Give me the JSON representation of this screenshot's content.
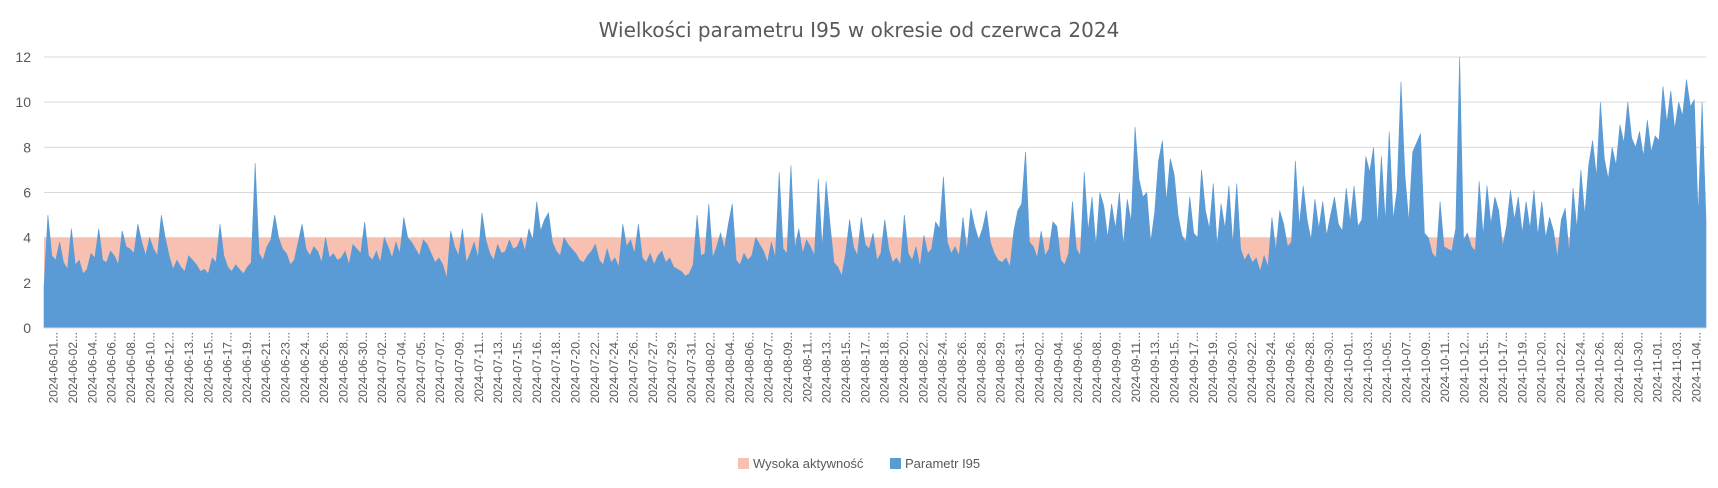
{
  "chart_data": {
    "type": "area",
    "title": "Wielkości parametru I95 w okresie od czerwca 2024",
    "xlabel": "",
    "ylabel": "",
    "ylim": [
      0,
      12
    ],
    "yticks": [
      0,
      2,
      4,
      6,
      8,
      10,
      12
    ],
    "grid": true,
    "legend_position": "bottom",
    "x_tick_labels": [
      "2024-06-01...",
      "2024-06-02...",
      "2024-06-04...",
      "2024-06-06...",
      "2024-06-08...",
      "2024-06-10...",
      "2024-06-12...",
      "2024-06-13...",
      "2024-06-15...",
      "2024-06-17...",
      "2024-06-19...",
      "2024-06-21...",
      "2024-06-23...",
      "2024-06-24...",
      "2024-06-26...",
      "2024-06-28...",
      "2024-06-30...",
      "2024-07-02...",
      "2024-07-04...",
      "2024-07-05...",
      "2024-07-07...",
      "2024-07-09...",
      "2024-07-11...",
      "2024-07-13...",
      "2024-07-15...",
      "2024-07-16...",
      "2024-07-18...",
      "2024-07-20...",
      "2024-07-22...",
      "2024-07-24...",
      "2024-07-26...",
      "2024-07-27...",
      "2024-07-29...",
      "2024-07-31...",
      "2024-08-02...",
      "2024-08-04...",
      "2024-08-06...",
      "2024-08-07...",
      "2024-08-09...",
      "2024-08-11...",
      "2024-08-13...",
      "2024-08-15...",
      "2024-08-17...",
      "2024-08-18...",
      "2024-08-20...",
      "2024-08-22...",
      "2024-08-24...",
      "2024-08-26...",
      "2024-08-28...",
      "2024-08-29...",
      "2024-08-31...",
      "2024-09-02...",
      "2024-09-04...",
      "2024-09-06...",
      "2024-09-08...",
      "2024-09-09...",
      "2024-09-11...",
      "2024-09-13...",
      "2024-09-15...",
      "2024-09-17...",
      "2024-09-19...",
      "2024-09-20...",
      "2024-09-22...",
      "2024-09-24...",
      "2024-09-26...",
      "2024-09-28...",
      "2024-09-30...",
      "2024-10-01...",
      "2024-10-03...",
      "2024-10-05...",
      "2024-10-07...",
      "2024-10-09...",
      "2024-10-11...",
      "2024-10-12...",
      "2024-10-15...",
      "2024-10-17...",
      "2024-10-19...",
      "2024-10-20...",
      "2024-10-22...",
      "2024-10-24...",
      "2024-10-26...",
      "2024-10-28...",
      "2024-10-30...",
      "2024-11-01...",
      "2024-11-03...",
      "2024-11-04..."
    ],
    "series": [
      {
        "name": "Wysoka aktywność",
        "kind": "band",
        "range": [
          0,
          4
        ],
        "color": "#f8c0b0"
      },
      {
        "name": "Parametr I95",
        "kind": "area",
        "color": "#5b9bd5",
        "values": [
          1.8,
          5.0,
          3.2,
          3.0,
          3.8,
          2.9,
          2.6,
          4.4,
          2.8,
          3.0,
          2.4,
          2.6,
          3.3,
          3.1,
          4.4,
          3.0,
          2.9,
          3.4,
          3.2,
          2.8,
          4.3,
          3.6,
          3.5,
          3.3,
          4.6,
          3.8,
          3.2,
          4.0,
          3.5,
          3.2,
          5.0,
          4.0,
          3.2,
          2.6,
          3.0,
          2.7,
          2.5,
          3.2,
          3.0,
          2.8,
          2.5,
          2.6,
          2.4,
          3.1,
          2.9,
          4.6,
          3.2,
          2.7,
          2.5,
          2.8,
          2.6,
          2.4,
          2.7,
          2.9,
          7.3,
          3.3,
          3.0,
          3.6,
          3.9,
          5.0,
          4.0,
          3.5,
          3.3,
          2.8,
          3.0,
          3.8,
          4.6,
          3.5,
          3.2,
          3.6,
          3.4,
          2.9,
          4.0,
          3.1,
          3.3,
          3.0,
          3.1,
          3.4,
          2.8,
          3.7,
          3.5,
          3.3,
          4.7,
          3.2,
          3.0,
          3.4,
          2.9,
          4.0,
          3.6,
          3.1,
          3.8,
          3.3,
          4.9,
          4.0,
          3.8,
          3.5,
          3.2,
          3.9,
          3.7,
          3.3,
          2.9,
          3.1,
          2.8,
          2.2,
          4.3,
          3.6,
          3.2,
          4.4,
          2.9,
          3.3,
          3.8,
          3.1,
          5.1,
          3.9,
          3.3,
          3.0,
          3.7,
          3.3,
          3.4,
          3.9,
          3.5,
          3.6,
          4.0,
          3.4,
          4.4,
          3.9,
          5.6,
          4.3,
          4.8,
          5.1,
          3.8,
          3.4,
          3.2,
          4.0,
          3.7,
          3.5,
          3.3,
          3.0,
          2.9,
          3.2,
          3.4,
          3.7,
          3.0,
          2.8,
          3.5,
          2.9,
          3.1,
          2.7,
          4.6,
          3.6,
          3.9,
          3.3,
          4.6,
          3.1,
          2.9,
          3.3,
          2.8,
          3.2,
          3.4,
          2.9,
          3.1,
          2.7,
          2.6,
          2.5,
          2.3,
          2.4,
          2.8,
          5.0,
          3.2,
          3.3,
          5.5,
          3.1,
          3.6,
          4.2,
          3.5,
          4.6,
          5.5,
          3.0,
          2.8,
          3.3,
          3.0,
          3.2,
          4.0,
          3.7,
          3.4,
          2.9,
          3.8,
          3.1,
          6.9,
          3.5,
          3.3,
          7.2,
          3.5,
          4.4,
          3.3,
          3.9,
          3.6,
          3.2,
          6.6,
          3.5,
          6.5,
          4.6,
          2.9,
          2.7,
          2.3,
          3.3,
          4.8,
          3.6,
          3.2,
          4.9,
          3.7,
          3.5,
          4.2,
          3.0,
          3.3,
          4.8,
          3.5,
          2.9,
          3.1,
          2.8,
          5.0,
          3.3,
          3.0,
          3.6,
          2.7,
          4.1,
          3.3,
          3.5,
          4.7,
          4.4,
          6.7,
          3.8,
          3.3,
          3.6,
          3.2,
          4.9,
          3.4,
          5.3,
          4.5,
          3.9,
          4.4,
          5.2,
          3.8,
          3.3,
          3.0,
          2.9,
          3.1,
          2.7,
          4.3,
          5.2,
          5.5,
          7.8,
          3.8,
          3.6,
          3.1,
          4.3,
          3.2,
          3.5,
          4.7,
          4.5,
          3.0,
          2.8,
          3.3,
          5.6,
          3.5,
          3.2,
          6.9,
          4.3,
          5.8,
          3.6,
          6.0,
          5.4,
          4.0,
          5.5,
          4.4,
          6.0,
          3.6,
          5.7,
          4.7,
          8.9,
          6.6,
          5.8,
          6.0,
          3.8,
          5.1,
          7.4,
          8.3,
          5.6,
          7.5,
          6.8,
          5.0,
          4.1,
          3.8,
          5.8,
          4.2,
          4.0,
          7.0,
          5.2,
          4.4,
          6.4,
          3.6,
          5.5,
          4.4,
          6.3,
          3.7,
          6.4,
          3.5,
          3.0,
          3.3,
          2.9,
          3.1,
          2.5,
          3.2,
          2.7,
          4.9,
          3.4,
          5.2,
          4.6,
          3.6,
          3.8,
          7.4,
          4.5,
          6.3,
          4.8,
          3.9,
          5.7,
          4.4,
          5.6,
          4.1,
          5.0,
          5.8,
          4.6,
          4.3,
          6.2,
          4.7,
          6.3,
          4.5,
          4.8,
          7.6,
          6.9,
          8.0,
          4.5,
          7.6,
          4.7,
          8.7,
          4.8,
          6.1,
          10.9,
          6.8,
          4.7,
          7.8,
          8.2,
          8.6,
          4.2,
          4.0,
          3.3,
          3.1,
          5.6,
          3.6,
          3.5,
          3.4,
          4.4,
          12.0,
          3.9,
          4.2,
          3.6,
          3.4,
          6.5,
          4.1,
          6.3,
          4.6,
          5.8,
          5.2,
          3.6,
          4.5,
          6.1,
          4.8,
          5.8,
          4.2,
          5.6,
          4.4,
          6.1,
          4.1,
          5.6,
          4.0,
          4.9,
          4.3,
          3.1,
          4.8,
          5.3,
          3.3,
          6.2,
          4.4,
          7.0,
          5.0,
          7.2,
          8.3,
          6.7,
          10.0,
          7.5,
          6.6,
          8.0,
          7.2,
          9.0,
          8.2,
          10.0,
          8.4,
          8.0,
          8.7,
          7.6,
          9.2,
          7.8,
          8.5,
          8.3,
          10.7,
          9.1,
          10.5,
          8.8,
          10.0,
          9.4,
          11.0,
          9.8,
          10.1,
          5.0,
          10.0,
          4.8
        ]
      }
    ]
  }
}
